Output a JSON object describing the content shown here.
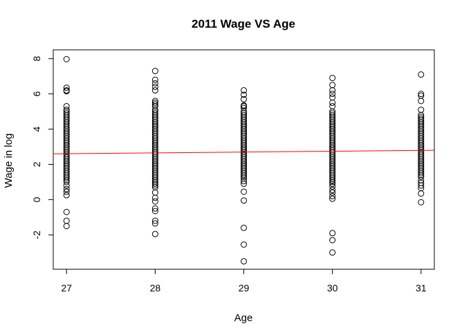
{
  "chart_data": {
    "type": "scatter",
    "title": "2011 Wage VS Age",
    "xlabel": "Age",
    "ylabel": "Wage in log",
    "xlim": [
      26.85,
      31.15
    ],
    "ylim": [
      -3.95,
      8.5
    ],
    "x_ticks": [
      27,
      28,
      29,
      30,
      31
    ],
    "y_ticks": [
      -2,
      0,
      2,
      4,
      6,
      8
    ],
    "x_tick_labels": [
      "27",
      "28",
      "29",
      "30",
      "31"
    ],
    "y_tick_labels": [
      "-2",
      "0",
      "2",
      "4",
      "6",
      "8"
    ],
    "grid": false,
    "legend": "none",
    "point_style": "open-circle",
    "colors": {
      "points": "#000000",
      "fit_line": "#ff0000"
    },
    "fit_line": {
      "x": [
        26.85,
        31.15
      ],
      "y": [
        2.6,
        2.8
      ]
    },
    "series": [
      {
        "x": 27,
        "y": [
          7.97,
          6.35,
          6.2,
          6.15,
          5.3,
          5.1,
          5.0,
          4.9,
          4.8,
          4.7,
          4.6,
          4.5,
          4.4,
          4.3,
          4.2,
          4.1,
          4.0,
          3.9,
          3.8,
          3.7,
          3.6,
          3.5,
          3.4,
          3.3,
          3.2,
          3.1,
          3.0,
          2.9,
          2.8,
          2.7,
          2.6,
          2.5,
          2.4,
          2.3,
          2.2,
          2.1,
          2.0,
          1.9,
          1.8,
          1.7,
          1.6,
          1.5,
          1.4,
          1.3,
          1.2,
          1.1,
          1.0,
          0.8,
          0.6,
          0.45,
          0.25,
          -0.7,
          -1.2,
          -1.5
        ]
      },
      {
        "x": 28,
        "y": [
          7.3,
          6.8,
          6.6,
          6.4,
          6.2,
          5.6,
          5.5,
          5.4,
          5.3,
          5.1,
          5.0,
          4.9,
          4.8,
          4.7,
          4.6,
          4.5,
          4.4,
          4.3,
          4.2,
          4.1,
          4.0,
          3.9,
          3.8,
          3.7,
          3.6,
          3.5,
          3.4,
          3.3,
          3.2,
          3.1,
          3.0,
          2.9,
          2.8,
          2.7,
          2.6,
          2.5,
          2.4,
          2.3,
          2.2,
          2.1,
          2.0,
          1.9,
          1.8,
          1.7,
          1.6,
          1.5,
          1.4,
          1.3,
          1.2,
          1.1,
          1.0,
          0.9,
          0.8,
          0.7,
          0.4,
          0.1,
          -0.1,
          -0.5,
          -0.65,
          -1.2,
          -1.35,
          -1.95
        ]
      },
      {
        "x": 29,
        "y": [
          6.2,
          5.95,
          5.7,
          5.35,
          5.3,
          5.2,
          5.0,
          4.9,
          4.8,
          4.7,
          4.6,
          4.5,
          4.4,
          4.3,
          4.2,
          4.1,
          4.0,
          3.9,
          3.8,
          3.7,
          3.6,
          3.5,
          3.4,
          3.3,
          3.2,
          3.1,
          3.0,
          2.9,
          2.8,
          2.7,
          2.6,
          2.5,
          2.4,
          2.3,
          2.2,
          2.1,
          2.0,
          1.9,
          1.8,
          1.7,
          1.6,
          1.5,
          1.4,
          1.3,
          1.2,
          1.05,
          0.9,
          0.45,
          -0.05,
          -1.6,
          -2.55,
          -3.5
        ]
      },
      {
        "x": 30,
        "y": [
          6.9,
          6.5,
          6.2,
          6.0,
          5.8,
          5.5,
          5.3,
          5.0,
          4.9,
          4.8,
          4.7,
          4.6,
          4.5,
          4.4,
          4.3,
          4.2,
          4.1,
          4.0,
          3.9,
          3.8,
          3.7,
          3.6,
          3.5,
          3.4,
          3.3,
          3.2,
          3.1,
          3.0,
          2.9,
          2.8,
          2.7,
          2.6,
          2.5,
          2.4,
          2.3,
          2.2,
          2.1,
          2.0,
          1.9,
          1.8,
          1.7,
          1.6,
          1.5,
          1.4,
          1.3,
          1.2,
          1.1,
          1.0,
          0.9,
          0.75,
          0.55,
          0.4,
          0.2,
          0.05,
          -1.9,
          -2.3,
          -3.0
        ]
      },
      {
        "x": 31,
        "y": [
          7.1,
          6.0,
          5.9,
          5.6,
          5.1,
          4.8,
          4.7,
          4.6,
          4.5,
          4.4,
          4.3,
          4.2,
          4.1,
          4.0,
          3.9,
          3.8,
          3.7,
          3.6,
          3.5,
          3.4,
          3.3,
          3.2,
          3.1,
          3.0,
          2.9,
          2.8,
          2.7,
          2.6,
          2.5,
          2.4,
          2.3,
          2.2,
          2.1,
          2.0,
          1.9,
          1.8,
          1.7,
          1.6,
          1.5,
          1.4,
          1.3,
          1.1,
          0.95,
          0.8,
          0.65,
          0.35,
          -0.15
        ]
      }
    ]
  }
}
